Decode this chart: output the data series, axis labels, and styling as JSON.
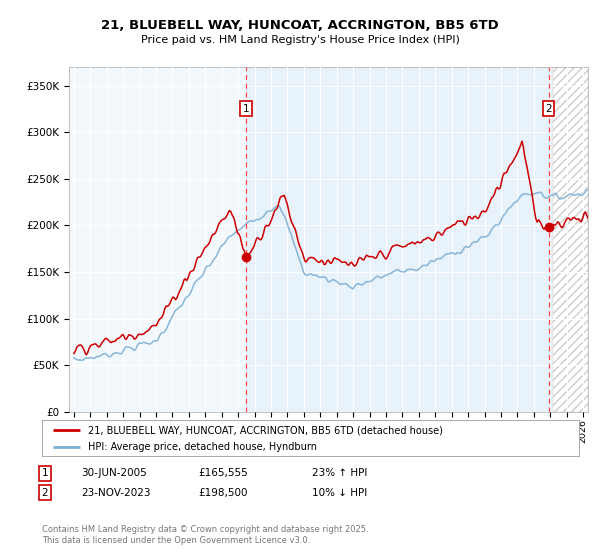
{
  "title1": "21, BLUEBELL WAY, HUNCOAT, ACCRINGTON, BB5 6TD",
  "title2": "Price paid vs. HM Land Registry's House Price Index (HPI)",
  "ylim": [
    0,
    370000
  ],
  "yticks": [
    0,
    50000,
    100000,
    150000,
    200000,
    250000,
    300000,
    350000
  ],
  "ytick_labels": [
    "£0",
    "£50K",
    "£100K",
    "£150K",
    "£200K",
    "£250K",
    "£300K",
    "£350K"
  ],
  "sale1_year": 2005.5,
  "sale1_price": 165555,
  "sale2_year": 2023.9,
  "sale2_price": 198500,
  "legend_line1": "21, BLUEBELL WAY, HUNCOAT, ACCRINGTON, BB5 6TD (detached house)",
  "legend_line2": "HPI: Average price, detached house, Hyndburn",
  "table_row1": [
    "1",
    "30-JUN-2005",
    "£165,555",
    "23% ↑ HPI"
  ],
  "table_row2": [
    "2",
    "23-NOV-2023",
    "£198,500",
    "10% ↓ HPI"
  ],
  "copyright": "Contains HM Land Registry data © Crown copyright and database right 2025.\nThis data is licensed under the Open Government Licence v3.0.",
  "line_red_color": "#cc0000",
  "line_blue_color": "#7bafd4",
  "plot_bg_color": "#e8f2fa",
  "grid_color": "#ffffff",
  "hatch_start_year": 2024.17,
  "xlim_left": 1994.7,
  "xlim_right": 2026.3
}
